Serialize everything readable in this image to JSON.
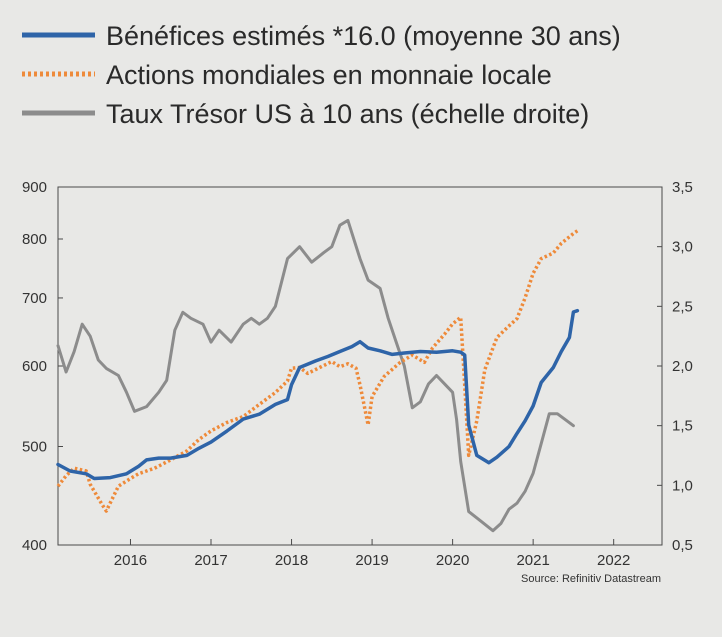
{
  "chart_data": {
    "type": "line",
    "x_unit": "year",
    "xlim": [
      2015.1,
      2022.6
    ],
    "x_ticks": [
      "2016",
      "2017",
      "2018",
      "2019",
      "2020",
      "2021",
      "2022"
    ],
    "y_left": {
      "scale": "log",
      "ylim": [
        400,
        900
      ],
      "ticks": [
        "400",
        "500",
        "600",
        "700",
        "800",
        "900"
      ]
    },
    "y_right": {
      "scale": "linear",
      "ylim": [
        0.5,
        3.5
      ],
      "ticks": [
        "0,5",
        "1,0",
        "1,5",
        "2,0",
        "2,5",
        "3,0",
        "3,5"
      ]
    },
    "grid": false,
    "legend_position": "top-left",
    "source": "Source: Refinitiv Datastream",
    "series": [
      {
        "name": "Bénéfices estimés *16.0 (moyenne 30 ans)",
        "axis": "left",
        "color": "#2e64a8",
        "style": "solid",
        "points": [
          [
            2015.1,
            480
          ],
          [
            2015.25,
            473
          ],
          [
            2015.45,
            470
          ],
          [
            2015.55,
            465
          ],
          [
            2015.75,
            466
          ],
          [
            2015.95,
            470
          ],
          [
            2016.1,
            478
          ],
          [
            2016.2,
            485
          ],
          [
            2016.35,
            487
          ],
          [
            2016.5,
            487
          ],
          [
            2016.7,
            490
          ],
          [
            2016.85,
            498
          ],
          [
            2017.0,
            505
          ],
          [
            2017.2,
            518
          ],
          [
            2017.4,
            532
          ],
          [
            2017.6,
            538
          ],
          [
            2017.8,
            550
          ],
          [
            2017.95,
            556
          ],
          [
            2018.0,
            575
          ],
          [
            2018.1,
            598
          ],
          [
            2018.3,
            607
          ],
          [
            2018.45,
            613
          ],
          [
            2018.6,
            620
          ],
          [
            2018.75,
            627
          ],
          [
            2018.85,
            634
          ],
          [
            2018.95,
            625
          ],
          [
            2019.1,
            621
          ],
          [
            2019.25,
            616
          ],
          [
            2019.4,
            618
          ],
          [
            2019.6,
            620
          ],
          [
            2019.8,
            619
          ],
          [
            2020.0,
            621
          ],
          [
            2020.1,
            619
          ],
          [
            2020.15,
            615
          ],
          [
            2020.2,
            525
          ],
          [
            2020.3,
            490
          ],
          [
            2020.45,
            482
          ],
          [
            2020.55,
            488
          ],
          [
            2020.7,
            500
          ],
          [
            2020.8,
            515
          ],
          [
            2020.9,
            530
          ],
          [
            2021.0,
            548
          ],
          [
            2021.1,
            578
          ],
          [
            2021.25,
            598
          ],
          [
            2021.35,
            620
          ],
          [
            2021.45,
            640
          ],
          [
            2021.5,
            678
          ],
          [
            2021.55,
            680
          ]
        ]
      },
      {
        "name": "Actions mondiales en monnaie locale",
        "axis": "left",
        "color": "#ee8a3a",
        "style": "dotted",
        "points": [
          [
            2015.1,
            457
          ],
          [
            2015.2,
            468
          ],
          [
            2015.3,
            476
          ],
          [
            2015.45,
            473
          ],
          [
            2015.5,
            459
          ],
          [
            2015.65,
            438
          ],
          [
            2015.7,
            432
          ],
          [
            2015.85,
            457
          ],
          [
            2016.0,
            465
          ],
          [
            2016.1,
            470
          ],
          [
            2016.3,
            476
          ],
          [
            2016.5,
            485
          ],
          [
            2016.7,
            495
          ],
          [
            2016.85,
            508
          ],
          [
            2017.0,
            518
          ],
          [
            2017.2,
            528
          ],
          [
            2017.4,
            535
          ],
          [
            2017.6,
            550
          ],
          [
            2017.8,
            565
          ],
          [
            2017.95,
            580
          ],
          [
            2018.0,
            597
          ],
          [
            2018.1,
            598
          ],
          [
            2018.2,
            590
          ],
          [
            2018.35,
            598
          ],
          [
            2018.5,
            606
          ],
          [
            2018.6,
            599
          ],
          [
            2018.7,
            603
          ],
          [
            2018.8,
            597
          ],
          [
            2018.85,
            575
          ],
          [
            2018.95,
            525
          ],
          [
            2019.0,
            560
          ],
          [
            2019.15,
            586
          ],
          [
            2019.35,
            605
          ],
          [
            2019.5,
            615
          ],
          [
            2019.65,
            605
          ],
          [
            2019.75,
            625
          ],
          [
            2019.9,
            645
          ],
          [
            2020.0,
            660
          ],
          [
            2020.1,
            670
          ],
          [
            2020.15,
            575
          ],
          [
            2020.2,
            490
          ],
          [
            2020.3,
            530
          ],
          [
            2020.4,
            595
          ],
          [
            2020.55,
            640
          ],
          [
            2020.7,
            657
          ],
          [
            2020.8,
            668
          ],
          [
            2020.9,
            700
          ],
          [
            2021.0,
            740
          ],
          [
            2021.1,
            765
          ],
          [
            2021.25,
            775
          ],
          [
            2021.35,
            792
          ],
          [
            2021.5,
            810
          ],
          [
            2021.55,
            815
          ]
        ]
      },
      {
        "name": "Taux Trésor US à 10 ans (échelle droite)",
        "axis": "right",
        "color": "#8c8c8c",
        "style": "solid",
        "points": [
          [
            2015.1,
            2.17
          ],
          [
            2015.2,
            1.95
          ],
          [
            2015.3,
            2.12
          ],
          [
            2015.4,
            2.35
          ],
          [
            2015.5,
            2.25
          ],
          [
            2015.6,
            2.05
          ],
          [
            2015.7,
            1.98
          ],
          [
            2015.85,
            1.92
          ],
          [
            2015.95,
            1.78
          ],
          [
            2016.05,
            1.62
          ],
          [
            2016.2,
            1.66
          ],
          [
            2016.35,
            1.78
          ],
          [
            2016.45,
            1.88
          ],
          [
            2016.55,
            2.3
          ],
          [
            2016.65,
            2.45
          ],
          [
            2016.75,
            2.4
          ],
          [
            2016.9,
            2.35
          ],
          [
            2017.0,
            2.2
          ],
          [
            2017.1,
            2.3
          ],
          [
            2017.25,
            2.2
          ],
          [
            2017.4,
            2.35
          ],
          [
            2017.5,
            2.4
          ],
          [
            2017.6,
            2.35
          ],
          [
            2017.7,
            2.4
          ],
          [
            2017.8,
            2.5
          ],
          [
            2017.95,
            2.9
          ],
          [
            2018.1,
            3.0
          ],
          [
            2018.25,
            2.87
          ],
          [
            2018.4,
            2.95
          ],
          [
            2018.5,
            3.0
          ],
          [
            2018.6,
            3.18
          ],
          [
            2018.7,
            3.22
          ],
          [
            2018.85,
            2.9
          ],
          [
            2018.95,
            2.72
          ],
          [
            2019.1,
            2.65
          ],
          [
            2019.2,
            2.4
          ],
          [
            2019.3,
            2.2
          ],
          [
            2019.4,
            2.0
          ],
          [
            2019.5,
            1.65
          ],
          [
            2019.6,
            1.7
          ],
          [
            2019.7,
            1.85
          ],
          [
            2019.8,
            1.92
          ],
          [
            2019.9,
            1.85
          ],
          [
            2020.0,
            1.78
          ],
          [
            2020.05,
            1.55
          ],
          [
            2020.1,
            1.2
          ],
          [
            2020.2,
            0.78
          ],
          [
            2020.35,
            0.7
          ],
          [
            2020.5,
            0.62
          ],
          [
            2020.6,
            0.68
          ],
          [
            2020.7,
            0.8
          ],
          [
            2020.8,
            0.85
          ],
          [
            2020.9,
            0.95
          ],
          [
            2021.0,
            1.1
          ],
          [
            2021.1,
            1.35
          ],
          [
            2021.2,
            1.6
          ],
          [
            2021.3,
            1.6
          ],
          [
            2021.4,
            1.55
          ],
          [
            2021.5,
            1.5
          ]
        ]
      }
    ]
  }
}
